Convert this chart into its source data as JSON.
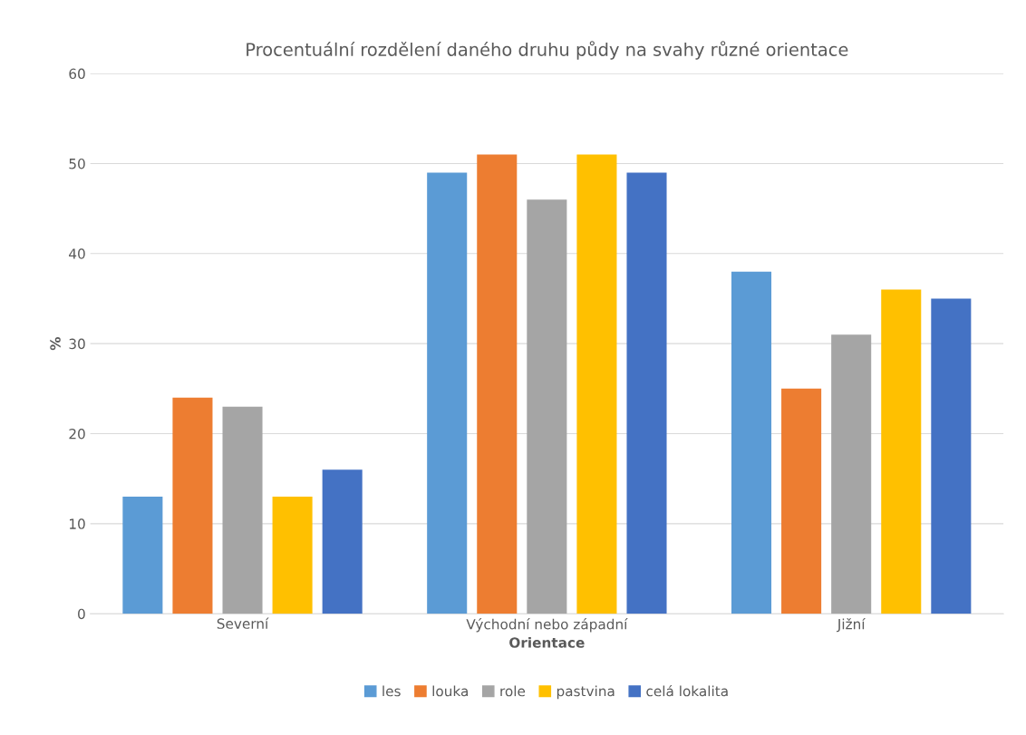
{
  "chart_data": {
    "type": "bar",
    "title": "Procentuální rozdělení daného druhu půdy na svahy různé orientace",
    "xlabel": "Orientace",
    "ylabel": "%",
    "categories": [
      "Severní",
      "Východní nebo západní",
      "Jižní"
    ],
    "series": [
      {
        "name": "les",
        "color": "#5b9bd5",
        "values": [
          13,
          49,
          38
        ]
      },
      {
        "name": "louka",
        "color": "#ed7d31",
        "values": [
          24,
          51,
          25
        ]
      },
      {
        "name": "role",
        "color": "#a5a5a5",
        "values": [
          23,
          46,
          31
        ]
      },
      {
        "name": "pastvina",
        "color": "#ffc000",
        "values": [
          13,
          51,
          36
        ]
      },
      {
        "name": "celá lokalita",
        "color": "#4472c4",
        "values": [
          16,
          49,
          35
        ]
      }
    ],
    "ylim": [
      0,
      60
    ],
    "yticks": [
      0,
      10,
      20,
      30,
      40,
      50,
      60
    ],
    "grid": "y",
    "legend": "bottom"
  }
}
